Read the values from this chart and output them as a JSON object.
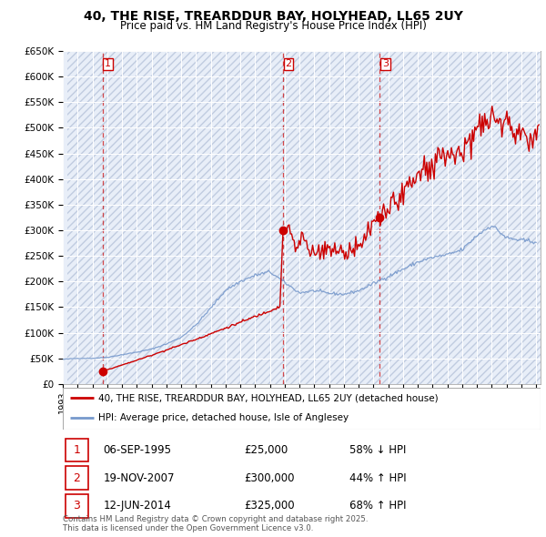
{
  "title": "40, THE RISE, TREARDDUR BAY, HOLYHEAD, LL65 2UY",
  "subtitle": "Price paid vs. HM Land Registry's House Price Index (HPI)",
  "background_color": "#ffffff",
  "plot_bg_color": "#e8eef8",
  "hatch_color": "#c0cce0",
  "grid_color": "#ffffff",
  "red_line_color": "#cc0000",
  "blue_line_color": "#7799cc",
  "ylim": [
    0,
    650000
  ],
  "yticks": [
    0,
    50000,
    100000,
    150000,
    200000,
    250000,
    300000,
    350000,
    400000,
    450000,
    500000,
    550000,
    600000,
    650000
  ],
  "ytick_labels": [
    "£0",
    "£50K",
    "£100K",
    "£150K",
    "£200K",
    "£250K",
    "£300K",
    "£350K",
    "£400K",
    "£450K",
    "£500K",
    "£550K",
    "£600K",
    "£650K"
  ],
  "xlim_start": 1993.3,
  "xlim_end": 2025.3,
  "transactions": [
    {
      "label": "1",
      "date": 1995.68,
      "price": 25000,
      "hpi_rel": "58% ↓ HPI",
      "date_str": "06-SEP-1995",
      "price_str": "£25,000"
    },
    {
      "label": "2",
      "date": 2007.89,
      "price": 300000,
      "hpi_rel": "44% ↑ HPI",
      "date_str": "19-NOV-2007",
      "price_str": "£300,000"
    },
    {
      "label": "3",
      "date": 2014.44,
      "price": 325000,
      "hpi_rel": "68% ↑ HPI",
      "date_str": "12-JUN-2014",
      "price_str": "£325,000"
    }
  ],
  "legend_line1": "40, THE RISE, TREARDDUR BAY, HOLYHEAD, LL65 2UY (detached house)",
  "legend_line2": "HPI: Average price, detached house, Isle of Anglesey",
  "footer": "Contains HM Land Registry data © Crown copyright and database right 2025.\nThis data is licensed under the Open Government Licence v3.0."
}
